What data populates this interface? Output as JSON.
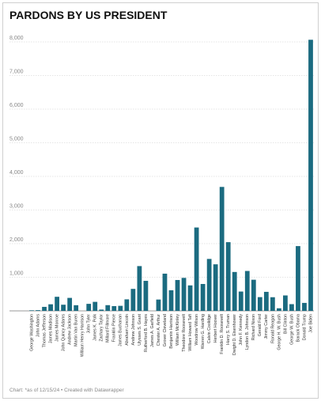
{
  "chart_data": {
    "type": "bar",
    "title": "PARDONS BY US PRESIDENT",
    "footer": "Chart: *as of 12/15/24 • Created with Datawrapper",
    "color": "#1b6b80",
    "categories": [
      "George Washington",
      "John Adams",
      "Thomas Jefferson",
      "James Madison",
      "James Monroe",
      "John Quincy Adams",
      "Andrew Jackson",
      "Martin Van Buren",
      "William Henry Harrison",
      "John Tyler",
      "James K. Polk",
      "Zachary Taylor",
      "Millard Fillmore",
      "Franklin Pierce",
      "James Buchanan",
      "Abraham Lincoln",
      "Andrew Johnson",
      "Ulysses S. Grant",
      "Rutherford B. Hayes",
      "James A. Garfield",
      "Chester A. Arthur",
      "Grover Cleveland",
      "Benjamin Harrison",
      "William McKinley",
      "Theodore Roosevelt",
      "William Howard Taft",
      "Woodrow Wilson",
      "Warren G. Harding",
      "Calvin Coolidge",
      "Herbert Hoover",
      "Franklin D. Roosevelt",
      "Harry S. Truman",
      "Dwight D. Eisenhower",
      "John F. Kennedy",
      "Lyndon B. Johnson",
      "Richard Nixon",
      "Gerald Ford",
      "Jimmy Carter",
      "Ronald Reagan",
      "George H. W. Bush",
      "Bill Clinton",
      "George W. Bush",
      "Barack Obama",
      "Donald Trump",
      "Joe Biden"
    ],
    "values": [
      16,
      21,
      119,
      196,
      419,
      183,
      386,
      168,
      0,
      209,
      268,
      38,
      170,
      142,
      150,
      343,
      654,
      1332,
      893,
      0,
      337,
      1107,
      613,
      918,
      981,
      758,
      2480,
      800,
      1545,
      1385,
      3687,
      2044,
      1157,
      575,
      1187,
      926,
      409,
      566,
      406,
      77,
      459,
      200,
      1927,
      237,
      8064
    ],
    "ylim": [
      0,
      8000
    ],
    "yticks": [
      {
        "value": 1000,
        "label": "1,000"
      },
      {
        "value": 2000,
        "label": "2,000"
      },
      {
        "value": 3000,
        "label": "3,000"
      },
      {
        "value": 4000,
        "label": "4,000"
      },
      {
        "value": 5000,
        "label": "5,000"
      },
      {
        "value": 6000,
        "label": "6,000"
      },
      {
        "value": 7000,
        "label": "7,000"
      },
      {
        "value": 8000,
        "label": "8,000"
      }
    ],
    "grid": true
  }
}
